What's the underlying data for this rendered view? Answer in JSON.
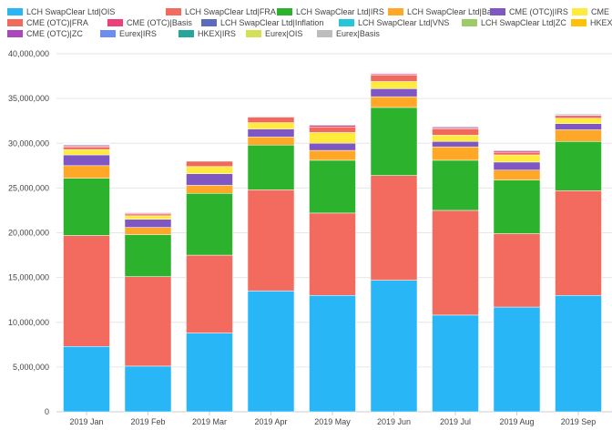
{
  "chart_data": {
    "type": "bar",
    "stacked": true,
    "title": "",
    "xlabel": "",
    "ylabel": "",
    "ylim": [
      0,
      40000000
    ],
    "yticks": [
      "0",
      "5,000,000",
      "10,000,000",
      "15,000,000",
      "20,000,000",
      "25,000,000",
      "30,000,000",
      "35,000,000",
      "40,000,000"
    ],
    "grid": true,
    "legend_position": "top",
    "categories": [
      "2019 Jan",
      "2019 Feb",
      "2019 Mar",
      "2019 Apr",
      "2019 May",
      "2019 Jun",
      "2019 Jul",
      "2019 Aug",
      "2019 Sep"
    ],
    "series": [
      {
        "name": "LCH SwapClear Ltd|OIS",
        "color": "#29b6f6",
        "values": [
          7300000,
          5100000,
          8800000,
          13500000,
          13000000,
          14700000,
          10800000,
          11700000,
          13000000
        ]
      },
      {
        "name": "LCH SwapClear Ltd|FRA",
        "color": "#f26b5e",
        "values": [
          12400000,
          10000000,
          8700000,
          11300000,
          9200000,
          11700000,
          11700000,
          8200000,
          11700000
        ]
      },
      {
        "name": "LCH SwapClear Ltd|IRS",
        "color": "#2db22d",
        "values": [
          6400000,
          4700000,
          6900000,
          5000000,
          5900000,
          7600000,
          5600000,
          6000000,
          5500000
        ]
      },
      {
        "name": "LCH SwapClear Ltd|Basis",
        "color": "#ffa726",
        "values": [
          1400000,
          800000,
          900000,
          900000,
          1100000,
          1200000,
          1500000,
          1100000,
          1300000
        ]
      },
      {
        "name": "CME (OTC)|IRS",
        "color": "#7e57c2",
        "values": [
          1200000,
          900000,
          1300000,
          900000,
          800000,
          900000,
          600000,
          900000,
          700000
        ]
      },
      {
        "name": "CME (OTC)|OIS",
        "color": "#ffeb3b",
        "values": [
          600000,
          400000,
          800000,
          700000,
          1200000,
          800000,
          700000,
          800000,
          600000
        ]
      },
      {
        "name": "CME (OTC)|FRA",
        "color": "#ef6a5a",
        "values": [
          300000,
          200000,
          600000,
          600000,
          600000,
          700000,
          700000,
          300000,
          300000
        ]
      },
      {
        "name": "CME (OTC)|Basis",
        "color": "#ec407a",
        "values": [
          100000,
          100000,
          50000,
          80000,
          200000,
          150000,
          150000,
          150000,
          80000
        ]
      },
      {
        "name": "LCH SwapClear Ltd|Inflation",
        "color": "#5c6bc0",
        "values": [
          100000,
          80000,
          50000,
          40000,
          80000,
          60000,
          100000,
          80000,
          80000
        ]
      },
      {
        "name": "LCH SwapClear Ltd|VNS",
        "color": "#26c6da",
        "values": [
          0,
          0,
          0,
          0,
          0,
          0,
          0,
          0,
          0
        ]
      },
      {
        "name": "LCH SwapClear Ltd|ZC",
        "color": "#9ccc65",
        "values": [
          50000,
          40000,
          50000,
          40000,
          40000,
          50000,
          40000,
          40000,
          40000
        ]
      },
      {
        "name": "HKEX|XCCY",
        "color": "#ffc107",
        "values": [
          0,
          0,
          0,
          0,
          0,
          0,
          0,
          0,
          0
        ]
      },
      {
        "name": "CME (OTC)|ZC",
        "color": "#ab47bc",
        "values": [
          50000,
          40000,
          50000,
          40000,
          40000,
          40000,
          40000,
          40000,
          40000
        ]
      },
      {
        "name": "Eurex|IRS",
        "color": "#6b8ef0",
        "values": [
          40000,
          30000,
          40000,
          30000,
          30000,
          40000,
          30000,
          30000,
          40000
        ]
      },
      {
        "name": "HKEX|IRS",
        "color": "#26a69a",
        "values": [
          0,
          0,
          0,
          0,
          0,
          0,
          0,
          0,
          0
        ]
      },
      {
        "name": "Eurex|OIS",
        "color": "#d4e157",
        "values": [
          20000,
          20000,
          20000,
          20000,
          20000,
          20000,
          20000,
          20000,
          20000
        ]
      },
      {
        "name": "Eurex|Basis",
        "color": "#bdbdbd",
        "values": [
          10000,
          10000,
          10000,
          10000,
          10000,
          10000,
          10000,
          10000,
          10000
        ]
      }
    ],
    "legend": [
      {
        "label": "LCH SwapClear Ltd|OIS",
        "color": "#29b6f6"
      },
      {
        "label": "LCH SwapClear Ltd|FRA",
        "color": "#f26b5e"
      },
      {
        "label": "LCH SwapClear Ltd|IRS",
        "color": "#2db22d"
      },
      {
        "label": "LCH SwapClear Ltd|Basis",
        "color": "#ffa726"
      },
      {
        "label": "CME (OTC)|IRS",
        "color": "#7e57c2"
      },
      {
        "label": "CME (OT",
        "color": "#ffeb3b"
      },
      {
        "label": "CME (OTC)|FRA",
        "color": "#ef6a5a"
      },
      {
        "label": "CME (OTC)|Basis",
        "color": "#ec407a"
      },
      {
        "label": "LCH SwapClear Ltd|Inflation",
        "color": "#5c6bc0"
      },
      {
        "label": "LCH SwapClear Ltd|VNS",
        "color": "#26c6da"
      },
      {
        "label": "LCH SwapClear Ltd|ZC",
        "color": "#9ccc65"
      },
      {
        "label": "HKEX|XCCY",
        "color": "#ffc107"
      },
      {
        "label": "CME (OTC)|ZC",
        "color": "#ab47bc"
      },
      {
        "label": "Eurex|IRS",
        "color": "#6b8ef0"
      },
      {
        "label": "HKEX|IRS",
        "color": "#26a69a"
      },
      {
        "label": "Eurex|OIS",
        "color": "#d4e157"
      },
      {
        "label": "Eurex|Basis",
        "color": "#bdbdbd"
      }
    ]
  }
}
